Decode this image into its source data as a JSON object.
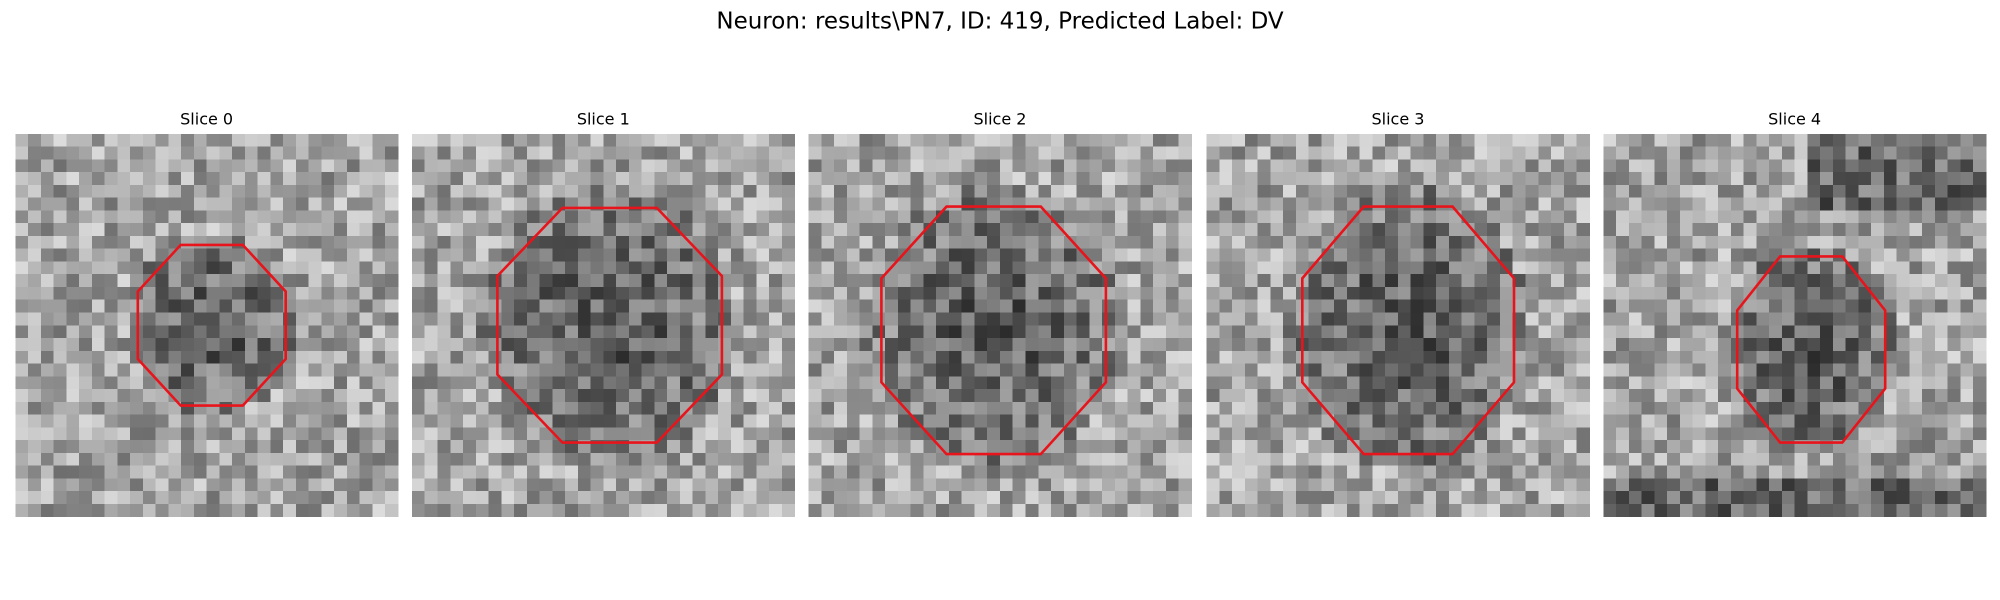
{
  "title": "Neuron: results\\PN7, ID: 419, Predicted Label: DV",
  "panels": [
    {
      "title": "Slice 0"
    },
    {
      "title": "Slice 1"
    },
    {
      "title": "Slice 2"
    },
    {
      "title": "Slice 3"
    },
    {
      "title": "Slice 4"
    }
  ]
}
